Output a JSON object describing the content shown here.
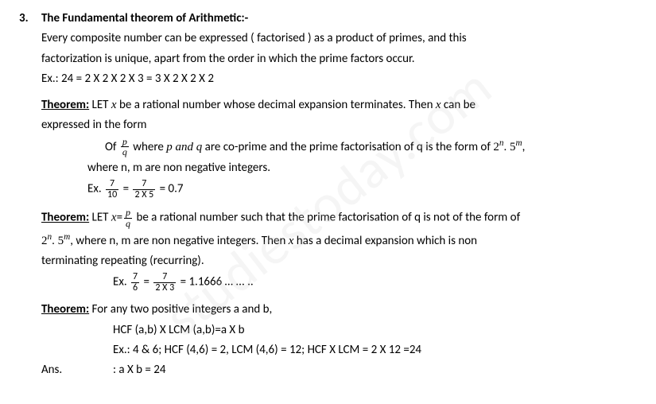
{
  "watermark": "studiestoday.com",
  "item_number": "3.",
  "title": "The Fundamental theorem of Arithmetic:-",
  "intro_line1": "Every composite number can be expressed  ( factorised ) as a product of primes, and this",
  "intro_line2": "factorization is unique, apart from the order in which the prime factors occur.",
  "intro_ex": "Ex.: 24 = 2 X 2 X 2 X 3 = 3 X 2 X 2 X 2",
  "theorem_label": "Theorem:",
  "t1": {
    "line1_a": " LET ",
    "line1_x": "x",
    "line1_b": " be a rational number whose decimal expansion terminates. Then ",
    "line1_c": " can be",
    "line2": "expressed in the form",
    "of_label": "Of ",
    "frac_p": "p",
    "frac_q": "q",
    "of_mid": " where ",
    "pandq": "p and q",
    "of_tail": " are co-prime and the prime factorisation of q is the form of ",
    "form": "2",
    "form_n": "n",
    "form_dot": ". 5",
    "form_m": "m",
    "comma": ",",
    "where_line": "where n, m  are non negative integers.",
    "ex_label": "Ex. ",
    "ex_num1": "7",
    "ex_den1": "10",
    "eq": " = ",
    "ex_num2": "7",
    "ex_den2": "2 X 5",
    "ex_result": " = 0.7"
  },
  "t2": {
    "line1_a": " LET ",
    "x": "x",
    "eq": "=",
    "frac_p": "p",
    "frac_q": "q",
    "line1_b": " be a rational number such that the prime factorisation of q is not of the form of",
    "form": "2",
    "form_n": "n",
    "form_dot": ". 5",
    "form_m": "m",
    "comma": ",",
    "line2_a": "   where n, m are non negative integers. Then ",
    "line2_b": " has a decimal expansion which is non",
    "line3": "terminating  repeating (recurring).",
    "ex_label": "Ex. ",
    "ex_num1": "7",
    "ex_den1": "6",
    "eqs": " = ",
    "ex_num2": "7",
    "ex_den2": "2 X 3",
    "ex_result": " = 1.1666 … ... .."
  },
  "t3": {
    "line1": " For any two positive integers a and b,",
    "line2": "HCF (a,b) X LCM (a,b)=a X b",
    "line3": "Ex.: 4 & 6;  HCF (4,6) = 2,  LCM (4,6) = 12; HCF X LCM = 2 X 12 =24",
    "ans_label": "Ans.",
    "ans_text": ": a X b = 24"
  }
}
